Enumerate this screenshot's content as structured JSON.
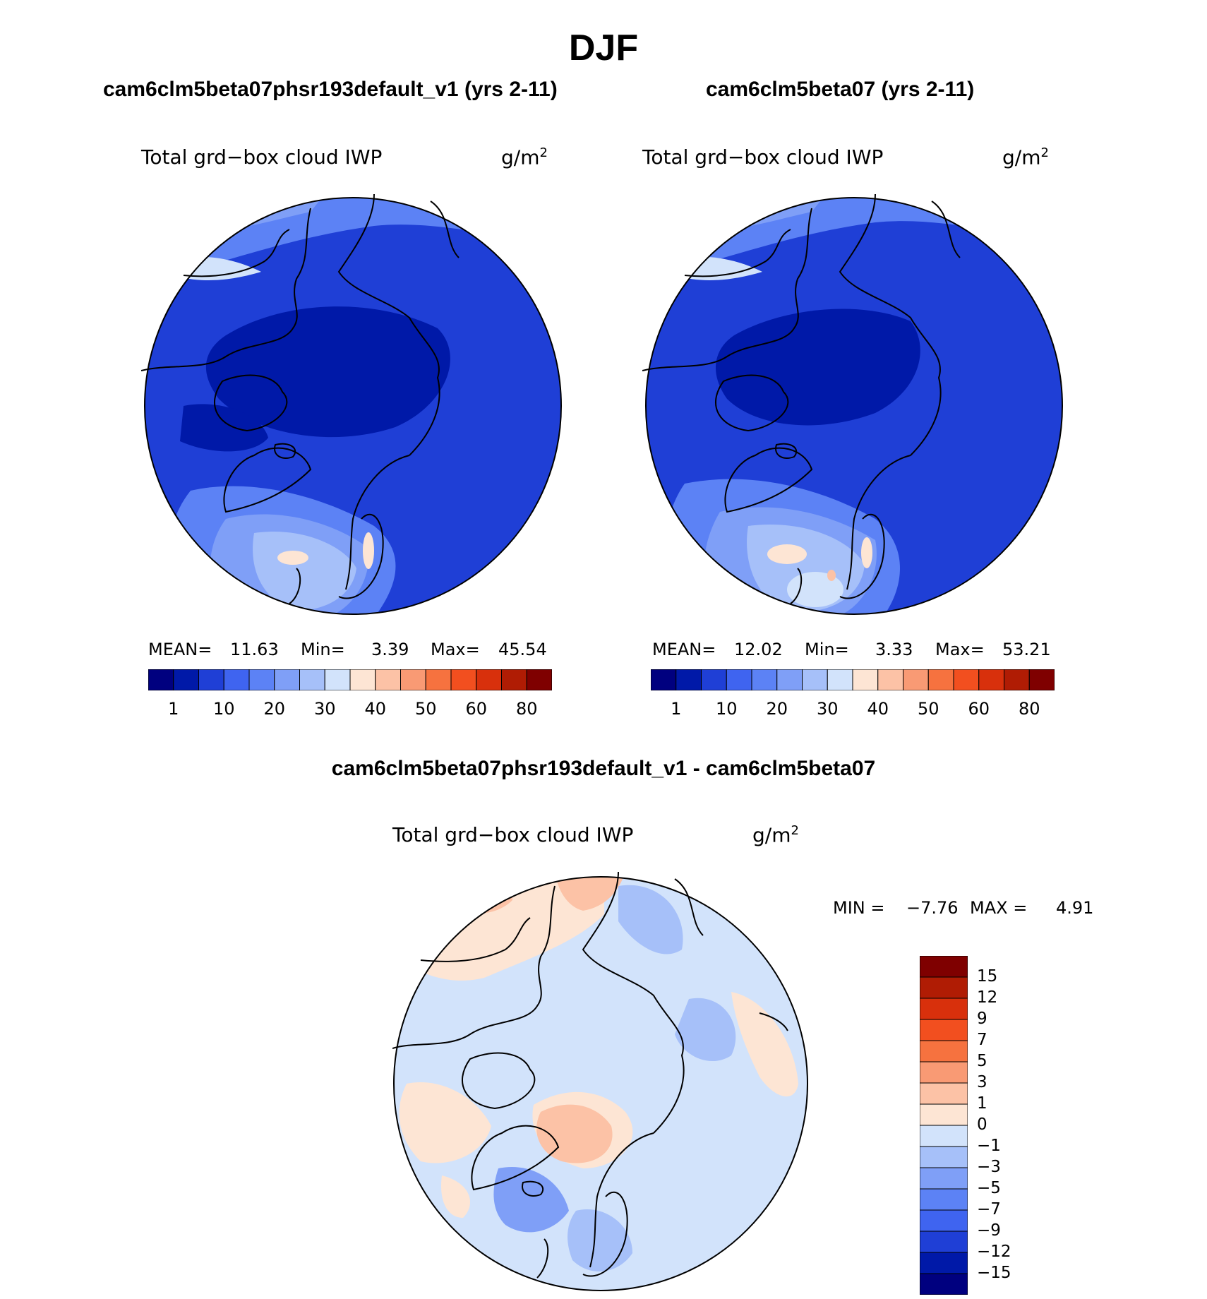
{
  "season": "DJF",
  "panels": [
    {
      "case_title": "cam6clm5beta07phsr193default_v1 (yrs 2-11)",
      "var_title": "Total grd−box cloud IWP",
      "unit_base": "g/m",
      "unit_exp": "2",
      "stats": {
        "mean_label": "MEAN=",
        "mean": "11.63",
        "min_label": "Min=",
        "min": "3.39",
        "max_label": "Max=",
        "max": "45.54"
      }
    },
    {
      "case_title": "cam6clm5beta07 (yrs 2-11)",
      "var_title": "Total grd−box cloud IWP",
      "unit_base": "g/m",
      "unit_exp": "2",
      "stats": {
        "mean_label": "MEAN=",
        "mean": "12.02",
        "min_label": "Min=",
        "min": "3.33",
        "max_label": "Max=",
        "max": "53.21"
      }
    }
  ],
  "diff_panel": {
    "case_title": "cam6clm5beta07phsr193default_v1 - cam6clm5beta07",
    "var_title": "Total grd−box cloud IWP",
    "unit_base": "g/m",
    "unit_exp": "2",
    "stats": {
      "min_label": "MIN =",
      "min": "−7.76",
      "max_label": "MAX =",
      "max": "4.91"
    }
  },
  "colorbar_main": {
    "ticks": [
      "1",
      "10",
      "20",
      "30",
      "40",
      "50",
      "60",
      "80"
    ],
    "colors": [
      "#00007f",
      "#0019a8",
      "#1f3fd6",
      "#3f64f0",
      "#5c82f5",
      "#7f9ff7",
      "#a6c0f9",
      "#d2e3fb",
      "#fde5d4",
      "#fcc2a6",
      "#f99a74",
      "#f6723f",
      "#f24f1f",
      "#d8300c",
      "#b01c04",
      "#7f0000"
    ]
  },
  "colorbar_diff": {
    "ticks": [
      "15",
      "12",
      "9",
      "7",
      "5",
      "3",
      "1",
      "0",
      "−1",
      "−3",
      "−5",
      "−7",
      "−9",
      "−12",
      "−15"
    ],
    "colors": [
      "#7f0000",
      "#b01c04",
      "#d8300c",
      "#f24f1f",
      "#f6723f",
      "#f99a74",
      "#fcc2a6",
      "#fde5d4",
      "#d2e3fb",
      "#a6c0f9",
      "#7f9ff7",
      "#5c82f5",
      "#3f64f0",
      "#1f3fd6",
      "#0019a8",
      "#00007f"
    ]
  },
  "chart_data": [
    {
      "type": "heatmap",
      "projection": "north polar stereographic",
      "title": "Total grd−box cloud IWP",
      "units": "g/m2",
      "case": "cam6clm5beta07phsr193default_v1 (yrs 2-11)",
      "mean": 11.63,
      "min": 3.39,
      "max": 45.54,
      "levels": [
        1,
        10,
        20,
        30,
        40,
        50,
        60,
        80
      ]
    },
    {
      "type": "heatmap",
      "projection": "north polar stereographic",
      "title": "Total grd−box cloud IWP",
      "units": "g/m2",
      "case": "cam6clm5beta07 (yrs 2-11)",
      "mean": 12.02,
      "min": 3.33,
      "max": 53.21,
      "levels": [
        1,
        10,
        20,
        30,
        40,
        50,
        60,
        80
      ]
    },
    {
      "type": "heatmap",
      "projection": "north polar stereographic",
      "title": "Total grd−box cloud IWP",
      "units": "g/m2",
      "case": "cam6clm5beta07phsr193default_v1 - cam6clm5beta07",
      "min": -7.76,
      "max": 4.91,
      "levels": [
        -15,
        -12,
        -9,
        -7,
        -5,
        -3,
        -1,
        0,
        1,
        3,
        5,
        7,
        9,
        12,
        15
      ]
    }
  ]
}
